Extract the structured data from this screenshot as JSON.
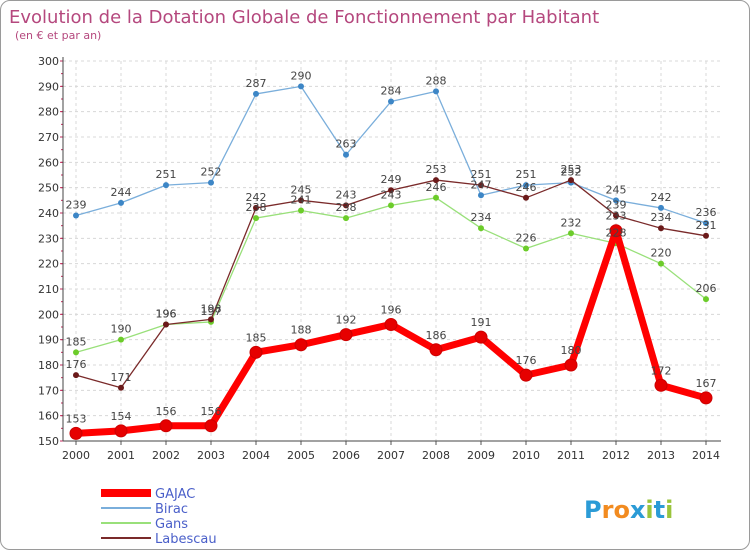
{
  "chart_data": {
    "type": "line",
    "title": "Evolution de la Dotation Globale de Fonctionnement par Habitant",
    "subtitle": "(en € et par an)",
    "xlabel": "",
    "ylabel": "",
    "ylim": [
      150,
      300
    ],
    "yticks": [
      150,
      160,
      170,
      180,
      190,
      200,
      210,
      220,
      230,
      240,
      250,
      260,
      270,
      280,
      290,
      300
    ],
    "categories": [
      "2000",
      "2001",
      "2002",
      "2003",
      "2004",
      "2005",
      "2006",
      "2007",
      "2008",
      "2009",
      "2010",
      "2011",
      "2012",
      "2013",
      "2014"
    ],
    "grid": true,
    "legend_position": "bottom-left",
    "series": [
      {
        "name": "GAJAC",
        "color": "#ff0000",
        "marker": "#e60000",
        "values": [
          153,
          154,
          156,
          156,
          185,
          188,
          192,
          196,
          186,
          191,
          176,
          180,
          233,
          172,
          167
        ]
      },
      {
        "name": "Birac",
        "color": "#7aaedb",
        "marker": "#3d86c6",
        "values": [
          239,
          244,
          251,
          252,
          287,
          290,
          263,
          284,
          288,
          247,
          251,
          252,
          245,
          242,
          236
        ]
      },
      {
        "name": "Gans",
        "color": "#99e07a",
        "marker": "#6ccc2a",
        "values": [
          185,
          190,
          196,
          197,
          238,
          241,
          238,
          243,
          246,
          234,
          226,
          232,
          228,
          220,
          206
        ]
      },
      {
        "name": "Labescau",
        "color": "#7a2a2a",
        "marker": "#6b1a1a",
        "values": [
          176,
          171,
          196,
          198,
          242,
          245,
          243,
          249,
          253,
          251,
          246,
          253,
          239,
          234,
          231
        ]
      }
    ],
    "data_labels": {
      "GAJAC": [
        "153",
        "154",
        "156",
        "156",
        "185",
        "188",
        "192",
        "196",
        "186",
        "191",
        "176",
        "180",
        "233",
        "172",
        "167"
      ],
      "Birac": [
        "239",
        "244",
        "251",
        "252",
        "287",
        "290",
        "263",
        "284",
        "288",
        "247",
        "251",
        "252",
        "245",
        "242",
        "236"
      ],
      "Gans": [
        "185",
        "190",
        "196",
        "197",
        "238",
        "241",
        "238",
        "243",
        "246",
        "234",
        "226",
        "232",
        "228",
        "220",
        "206"
      ],
      "Labescau": [
        "176",
        "171",
        "196",
        "198",
        "242",
        "245",
        "243",
        "249",
        "253",
        "251",
        "246",
        "253",
        "239",
        "234",
        "231"
      ]
    }
  },
  "logo": {
    "text": "Proxiti"
  }
}
